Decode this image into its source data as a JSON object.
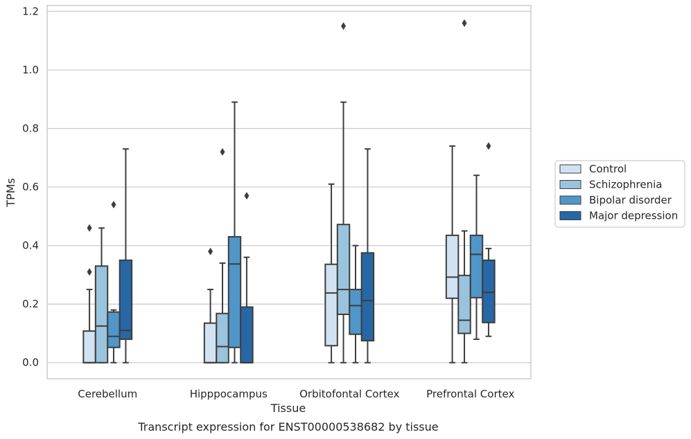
{
  "chart_data": {
    "type": "box",
    "xlabel": "Tissue",
    "ylabel": "TPMs",
    "caption": "Transcript expression for ENST00000538682 by tissue",
    "ylim": [
      -0.055,
      1.22
    ],
    "yticks": [
      "0.0",
      "0.2",
      "0.4",
      "0.6",
      "0.8",
      "1.0",
      "1.2"
    ],
    "grid": "horizontal",
    "legend_position": "right",
    "categories": [
      "Cerebellum",
      "Hipppocampus",
      "Orbitofontal Cortex",
      "Prefrontal Cortex"
    ],
    "series": [
      {
        "name": "Control",
        "color": "#d1e2f2",
        "boxes": [
          {
            "whislo": 0.0,
            "q1": 0.0,
            "med": 0.0,
            "q3": 0.108,
            "whishi": 0.25,
            "fliers": [
              0.31,
              0.46
            ]
          },
          {
            "whislo": 0.0,
            "q1": 0.0,
            "med": 0.0,
            "q3": 0.135,
            "whishi": 0.25,
            "fliers": [
              0.38
            ]
          },
          {
            "whislo": 0.0,
            "q1": 0.058,
            "med": 0.238,
            "q3": 0.336,
            "whishi": 0.61,
            "fliers": []
          },
          {
            "whislo": 0.0,
            "q1": 0.22,
            "med": 0.292,
            "q3": 0.435,
            "whishi": 0.74,
            "fliers": []
          }
        ]
      },
      {
        "name": "Schizophrenia",
        "color": "#9ac3dd",
        "boxes": [
          {
            "whislo": 0.0,
            "q1": 0.0,
            "med": 0.125,
            "q3": 0.33,
            "whishi": 0.46,
            "fliers": []
          },
          {
            "whislo": 0.0,
            "q1": 0.0,
            "med": 0.055,
            "q3": 0.168,
            "whishi": 0.34,
            "fliers": [
              0.72
            ]
          },
          {
            "whislo": 0.0,
            "q1": 0.165,
            "med": 0.25,
            "q3": 0.472,
            "whishi": 0.89,
            "fliers": [
              1.15
            ]
          },
          {
            "whislo": 0.0,
            "q1": 0.1,
            "med": 0.145,
            "q3": 0.298,
            "whishi": 0.45,
            "fliers": [
              1.16
            ]
          }
        ]
      },
      {
        "name": "Bipolar disorder",
        "color": "#5096c8",
        "boxes": [
          {
            "whislo": 0.0,
            "q1": 0.052,
            "med": 0.09,
            "q3": 0.173,
            "whishi": 0.18,
            "fliers": [
              0.54
            ]
          },
          {
            "whislo": 0.0,
            "q1": 0.052,
            "med": 0.337,
            "q3": 0.43,
            "whishi": 0.89,
            "fliers": []
          },
          {
            "whislo": 0.0,
            "q1": 0.097,
            "med": 0.195,
            "q3": 0.25,
            "whishi": 0.4,
            "fliers": []
          },
          {
            "whislo": 0.08,
            "q1": 0.222,
            "med": 0.37,
            "q3": 0.435,
            "whishi": 0.64,
            "fliers": []
          }
        ]
      },
      {
        "name": "Major depression",
        "color": "#2767a5",
        "boxes": [
          {
            "whislo": 0.0,
            "q1": 0.08,
            "med": 0.11,
            "q3": 0.35,
            "whishi": 0.73,
            "fliers": []
          },
          {
            "whislo": 0.0,
            "q1": 0.0,
            "med": 0.0,
            "q3": 0.19,
            "whishi": 0.36,
            "fliers": [
              0.57
            ]
          },
          {
            "whislo": 0.0,
            "q1": 0.075,
            "med": 0.212,
            "q3": 0.375,
            "whishi": 0.73,
            "fliers": []
          },
          {
            "whislo": 0.09,
            "q1": 0.137,
            "med": 0.24,
            "q3": 0.35,
            "whishi": 0.39,
            "fliers": [
              0.74
            ]
          }
        ]
      }
    ],
    "colors": {
      "grid": "#cccccc",
      "frame": "#cccccc",
      "stroke": "#3d3d3d",
      "text": "#262626"
    }
  }
}
